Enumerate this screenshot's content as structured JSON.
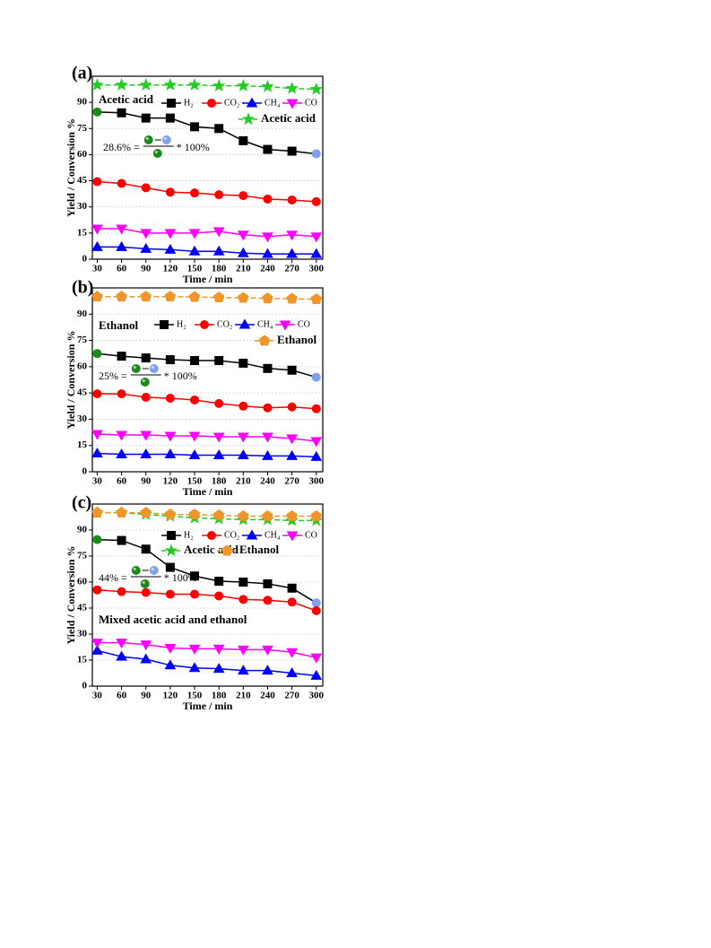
{
  "chart_data": [
    {
      "type": "line",
      "panel_label": "(a)",
      "inner_label": "Acetic acid",
      "x_label": "Time / min",
      "y_label": "Yield / Conversion  %",
      "annotation": {
        "left": "28.6% =",
        "right": "* 100%"
      },
      "x": [
        30,
        60,
        90,
        120,
        150,
        180,
        210,
        240,
        270,
        300
      ],
      "xlim": [
        24,
        308
      ],
      "xticks": [
        30,
        60,
        90,
        120,
        150,
        180,
        210,
        240,
        270,
        300
      ],
      "ylim": [
        0,
        105
      ],
      "yticks": [
        0,
        15,
        30,
        45,
        60,
        75,
        90
      ],
      "grid": true,
      "series": [
        {
          "name": "H₂",
          "color": "#000000",
          "marker": "square",
          "endpoint_colors": [
            "#1a8a1a",
            "#7f9fef"
          ],
          "values": [
            84.5,
            84,
            81,
            81,
            76,
            75,
            68,
            63,
            62,
            60.5
          ]
        },
        {
          "name": "CO₂",
          "color": "#ff0000",
          "marker": "circle",
          "values": [
            44.5,
            43.5,
            41,
            38.5,
            38,
            37,
            36.5,
            34.5,
            34,
            33
          ]
        },
        {
          "name": "CH₄",
          "color": "#0000ff",
          "marker": "triangle-up",
          "values": [
            7,
            7,
            6,
            5.5,
            4.5,
            4.5,
            3.5,
            3,
            3,
            3
          ]
        },
        {
          "name": "CO",
          "color": "#ff00ff",
          "marker": "triangle-down",
          "values": [
            17.5,
            17.5,
            15,
            15,
            15,
            16,
            14,
            13,
            14,
            13
          ]
        },
        {
          "name": "Acetic acid",
          "color": "#22cc22",
          "marker": "star",
          "line_style": "dashed",
          "values": [
            100,
            100,
            100,
            100,
            100,
            99.5,
            99.5,
            99,
            98,
            97.5
          ]
        }
      ]
    },
    {
      "type": "line",
      "panel_label": "(b)",
      "inner_label": "Ethanol",
      "x_label": "Time / min",
      "y_label": "Yield / Conversion %",
      "annotation": {
        "left": "25% =",
        "right": "* 100%"
      },
      "x": [
        30,
        60,
        90,
        120,
        150,
        180,
        210,
        240,
        270,
        300
      ],
      "xlim": [
        24,
        308
      ],
      "xticks": [
        30,
        60,
        90,
        120,
        150,
        180,
        210,
        240,
        270,
        300
      ],
      "ylim": [
        0,
        105
      ],
      "yticks": [
        0,
        15,
        30,
        45,
        60,
        75,
        90
      ],
      "grid": true,
      "series": [
        {
          "name": "H₂",
          "color": "#000000",
          "marker": "square",
          "endpoint_colors": [
            "#1a8a1a",
            "#7f9fef"
          ],
          "values": [
            67.5,
            66,
            65,
            64,
            63.5,
            63.5,
            62,
            59,
            58,
            54
          ]
        },
        {
          "name": "CO₂",
          "color": "#ff0000",
          "marker": "circle",
          "values": [
            44.5,
            44.5,
            42.5,
            42,
            41,
            39,
            37.5,
            36.5,
            37,
            36
          ]
        },
        {
          "name": "CH₄",
          "color": "#0000ff",
          "marker": "triangle-up",
          "values": [
            10.5,
            10,
            10,
            10,
            9.5,
            9.5,
            9.5,
            9,
            9,
            8.5
          ]
        },
        {
          "name": "CO",
          "color": "#ff00ff",
          "marker": "triangle-down",
          "values": [
            21.5,
            21,
            21,
            20.5,
            20.5,
            20,
            20,
            20,
            19,
            17.5
          ]
        },
        {
          "name": "Ethanol",
          "color": "#f0952a",
          "marker": "pentagon",
          "line_style": "dashed",
          "values": [
            100,
            100,
            100,
            100,
            99.8,
            99.5,
            99.3,
            99,
            98.8,
            98.5
          ]
        }
      ]
    },
    {
      "type": "line",
      "panel_label": "(c)",
      "inner_label": "Mixed acetic acid and ethanol",
      "x_label": "Time / min",
      "y_label": "Yield / Conversion %",
      "annotation": {
        "left": "44% =",
        "right": "* 100%"
      },
      "x": [
        30,
        60,
        90,
        120,
        150,
        180,
        210,
        240,
        270,
        300
      ],
      "xlim": [
        24,
        308
      ],
      "xticks": [
        30,
        60,
        90,
        120,
        150,
        180,
        210,
        240,
        270,
        300
      ],
      "ylim": [
        0,
        105
      ],
      "yticks": [
        0,
        15,
        30,
        45,
        60,
        75,
        90
      ],
      "grid": true,
      "series": [
        {
          "name": "H₂",
          "color": "#000000",
          "marker": "square",
          "endpoint_colors": [
            "#1a8a1a",
            "#7f9fef"
          ],
          "values": [
            84.5,
            84,
            79,
            68.5,
            63.5,
            60.5,
            60,
            59,
            56.5,
            48
          ]
        },
        {
          "name": "CO₂",
          "color": "#ff0000",
          "marker": "circle",
          "values": [
            55.5,
            54.5,
            54,
            53,
            53,
            52,
            50,
            49.5,
            48.5,
            43.5
          ]
        },
        {
          "name": "CH₄",
          "color": "#0000ff",
          "marker": "triangle-up",
          "values": [
            20.5,
            17,
            15.5,
            12,
            10.5,
            10,
            9,
            9,
            7.5,
            6
          ]
        },
        {
          "name": "CO",
          "color": "#ff00ff",
          "marker": "triangle-down",
          "values": [
            25,
            25,
            24,
            22,
            21.5,
            21.5,
            21,
            21,
            19.5,
            16.5
          ]
        },
        {
          "name": "Acetic acid",
          "color": "#22cc22",
          "marker": "star",
          "line_style": "dashed",
          "values": [
            100,
            100,
            99,
            98,
            97,
            96.5,
            96,
            96,
            95.5,
            95.5
          ]
        },
        {
          "name": "Ethanol",
          "color": "#f0952a",
          "marker": "pentagon",
          "line_style": "dashed",
          "values": [
            100,
            100,
            100,
            99,
            99,
            98.5,
            98,
            98,
            98,
            98
          ]
        }
      ]
    }
  ]
}
